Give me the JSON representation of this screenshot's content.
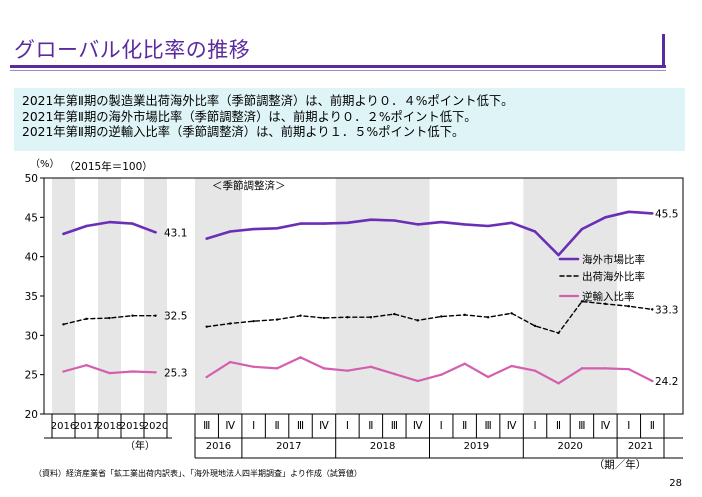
{
  "page": {
    "title": "グローバル化比率の推移",
    "summary": [
      "2021年第Ⅱ期の製造業出荷海外比率（季節調整済）は、前期より０．４%ポイント低下。",
      "2021年第Ⅱ期の海外市場比率（季節調整済）は、前期より０．２%ポイント低下。",
      "2021年第Ⅱ期の逆輸入比率（季節調整済）は、前期より１．５%ポイント低下。"
    ],
    "source": "（資料）経済産業省「鉱工業出荷内訳表」、「海外現地法人四半期調査」より作成（試算値）",
    "page_number": "28"
  },
  "chart_data": {
    "type": "line",
    "y_unit": "（%）",
    "base_note": "（2015年＝100）",
    "quarterly_note": "＜季節調整済＞",
    "ylim": [
      20,
      50
    ],
    "yticks": [
      20,
      25,
      30,
      35,
      40,
      45,
      50
    ],
    "grid": false,
    "legend_position": "right",
    "colors": {
      "overseas_market": "#6a2fb5",
      "shipment_overseas": "#000000",
      "reverse_import": "#d35fae",
      "band": "#e6e6e6"
    },
    "annual": {
      "categories": [
        "2016",
        "2017",
        "2018",
        "2019",
        "2020"
      ],
      "axis_unit": "（年）",
      "series": [
        {
          "key": "overseas_market",
          "values": [
            42.9,
            43.9,
            44.4,
            44.2,
            43.1
          ]
        },
        {
          "key": "shipment_overseas",
          "values": [
            31.4,
            32.1,
            32.2,
            32.5,
            32.5
          ]
        },
        {
          "key": "reverse_import",
          "values": [
            25.4,
            26.2,
            25.2,
            25.4,
            25.3
          ]
        }
      ],
      "end_labels": [
        "43.1",
        "32.5",
        "25.3"
      ]
    },
    "quarterly": {
      "categories": [
        "Ⅲ",
        "Ⅳ",
        "Ⅰ",
        "Ⅱ",
        "Ⅲ",
        "Ⅳ",
        "Ⅰ",
        "Ⅱ",
        "Ⅲ",
        "Ⅳ",
        "Ⅰ",
        "Ⅱ",
        "Ⅲ",
        "Ⅳ",
        "Ⅰ",
        "Ⅱ",
        "Ⅲ",
        "Ⅳ",
        "Ⅰ",
        "Ⅱ"
      ],
      "years": [
        {
          "label": "2016",
          "count": 2
        },
        {
          "label": "2017",
          "count": 4
        },
        {
          "label": "2018",
          "count": 4
        },
        {
          "label": "2019",
          "count": 4
        },
        {
          "label": "2020",
          "count": 4
        },
        {
          "label": "2021",
          "count": 2
        }
      ],
      "axis_unit": "（期／年）",
      "series": [
        {
          "key": "overseas_market",
          "name": "海外市場比率",
          "values": [
            42.3,
            43.2,
            43.5,
            43.6,
            44.2,
            44.2,
            44.3,
            44.7,
            44.6,
            44.1,
            44.4,
            44.1,
            43.9,
            44.3,
            43.2,
            40.2,
            43.5,
            45.0,
            45.7,
            45.5
          ]
        },
        {
          "key": "shipment_overseas",
          "name": "出荷海外比率",
          "values": [
            31.1,
            31.5,
            31.8,
            32.0,
            32.5,
            32.2,
            32.3,
            32.3,
            32.7,
            31.9,
            32.4,
            32.6,
            32.3,
            32.8,
            31.2,
            30.3,
            34.3,
            34.0,
            33.7,
            33.3
          ]
        },
        {
          "key": "reverse_import",
          "name": "逆輸入比率",
          "values": [
            24.7,
            26.6,
            26.0,
            25.8,
            27.2,
            25.8,
            25.5,
            26.0,
            25.1,
            24.2,
            25.0,
            26.4,
            24.7,
            26.1,
            25.5,
            23.9,
            25.8,
            25.8,
            25.7,
            24.2
          ]
        }
      ],
      "end_labels": [
        "45.5",
        "33.3",
        "24.2"
      ]
    }
  }
}
